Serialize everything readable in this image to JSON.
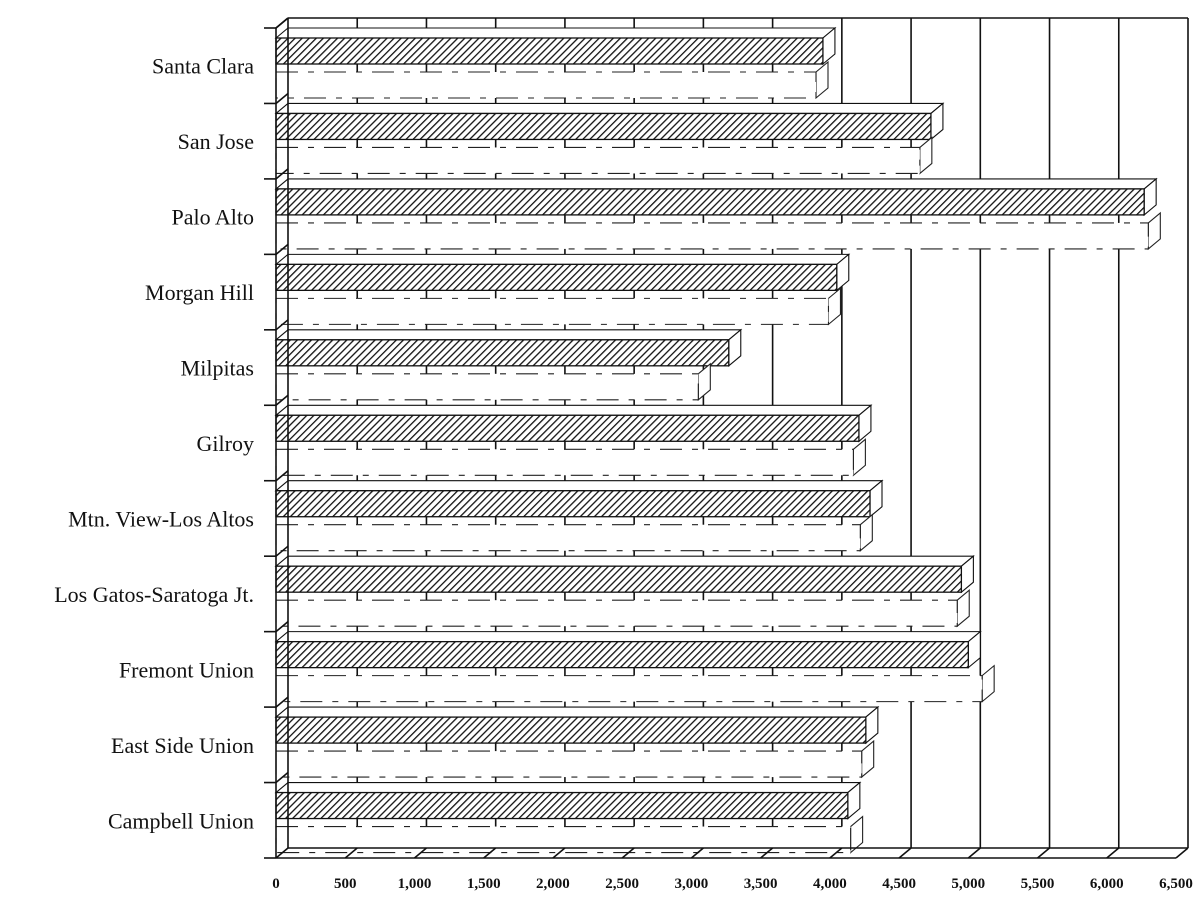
{
  "chart_data": {
    "type": "bar",
    "orientation": "horizontal",
    "three_d": true,
    "title": "",
    "xlabel": "",
    "ylabel": "",
    "categories": [
      "Santa Clara",
      "San Jose",
      "Palo Alto",
      "Morgan Hill",
      "Milpitas",
      "Gilroy",
      "Mtn. View-Los Altos",
      "Los Gatos-Saratoga Jt.",
      "Fremont Union",
      "East Side Union",
      "Campbell Union"
    ],
    "series": [
      {
        "values": [
          3950,
          4730,
          6270,
          4050,
          3270,
          4210,
          4290,
          4950,
          5000,
          4260,
          4130
        ]
      },
      {
        "values": [
          3900,
          4650,
          6300,
          3990,
          3050,
          4170,
          4220,
          4920,
          5100,
          4230,
          4150
        ]
      }
    ],
    "xlim": [
      0,
      6500
    ],
    "x_ticks": [
      "0",
      "500",
      "1,000",
      "1,500",
      "2,000",
      "2,500",
      "3,000",
      "3,500",
      "4,000",
      "4,500",
      "5,000",
      "5,500",
      "6,000",
      "6,500"
    ],
    "grid": true,
    "legend": "none"
  }
}
